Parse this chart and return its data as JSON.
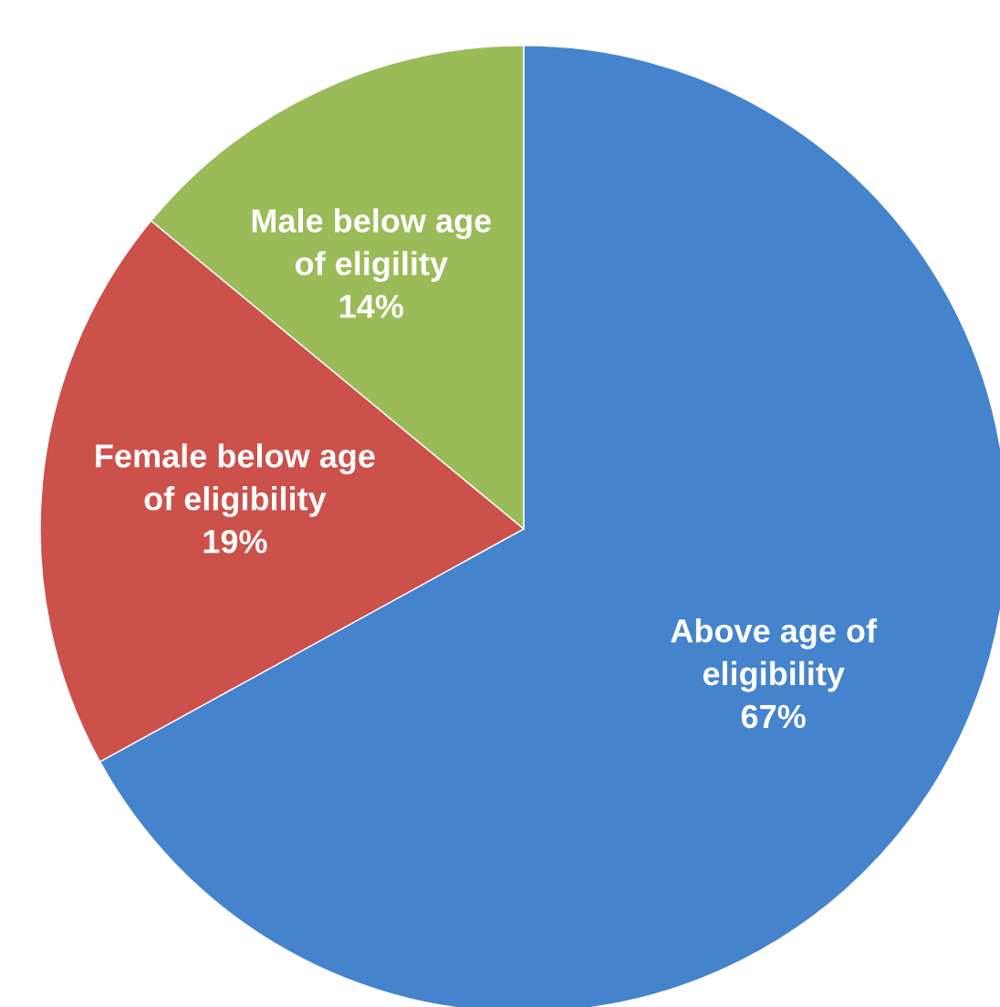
{
  "chart_data": {
    "type": "pie",
    "categories": [
      "Above age of\neligibility",
      "Female below age\nof eligibility",
      "Male below age\nof eligility"
    ],
    "values": [
      67,
      19,
      14
    ],
    "value_labels": [
      "67%",
      "19%",
      "14%"
    ],
    "colors": [
      "#4584cc",
      "#cc514b",
      "#9bbb59"
    ]
  }
}
